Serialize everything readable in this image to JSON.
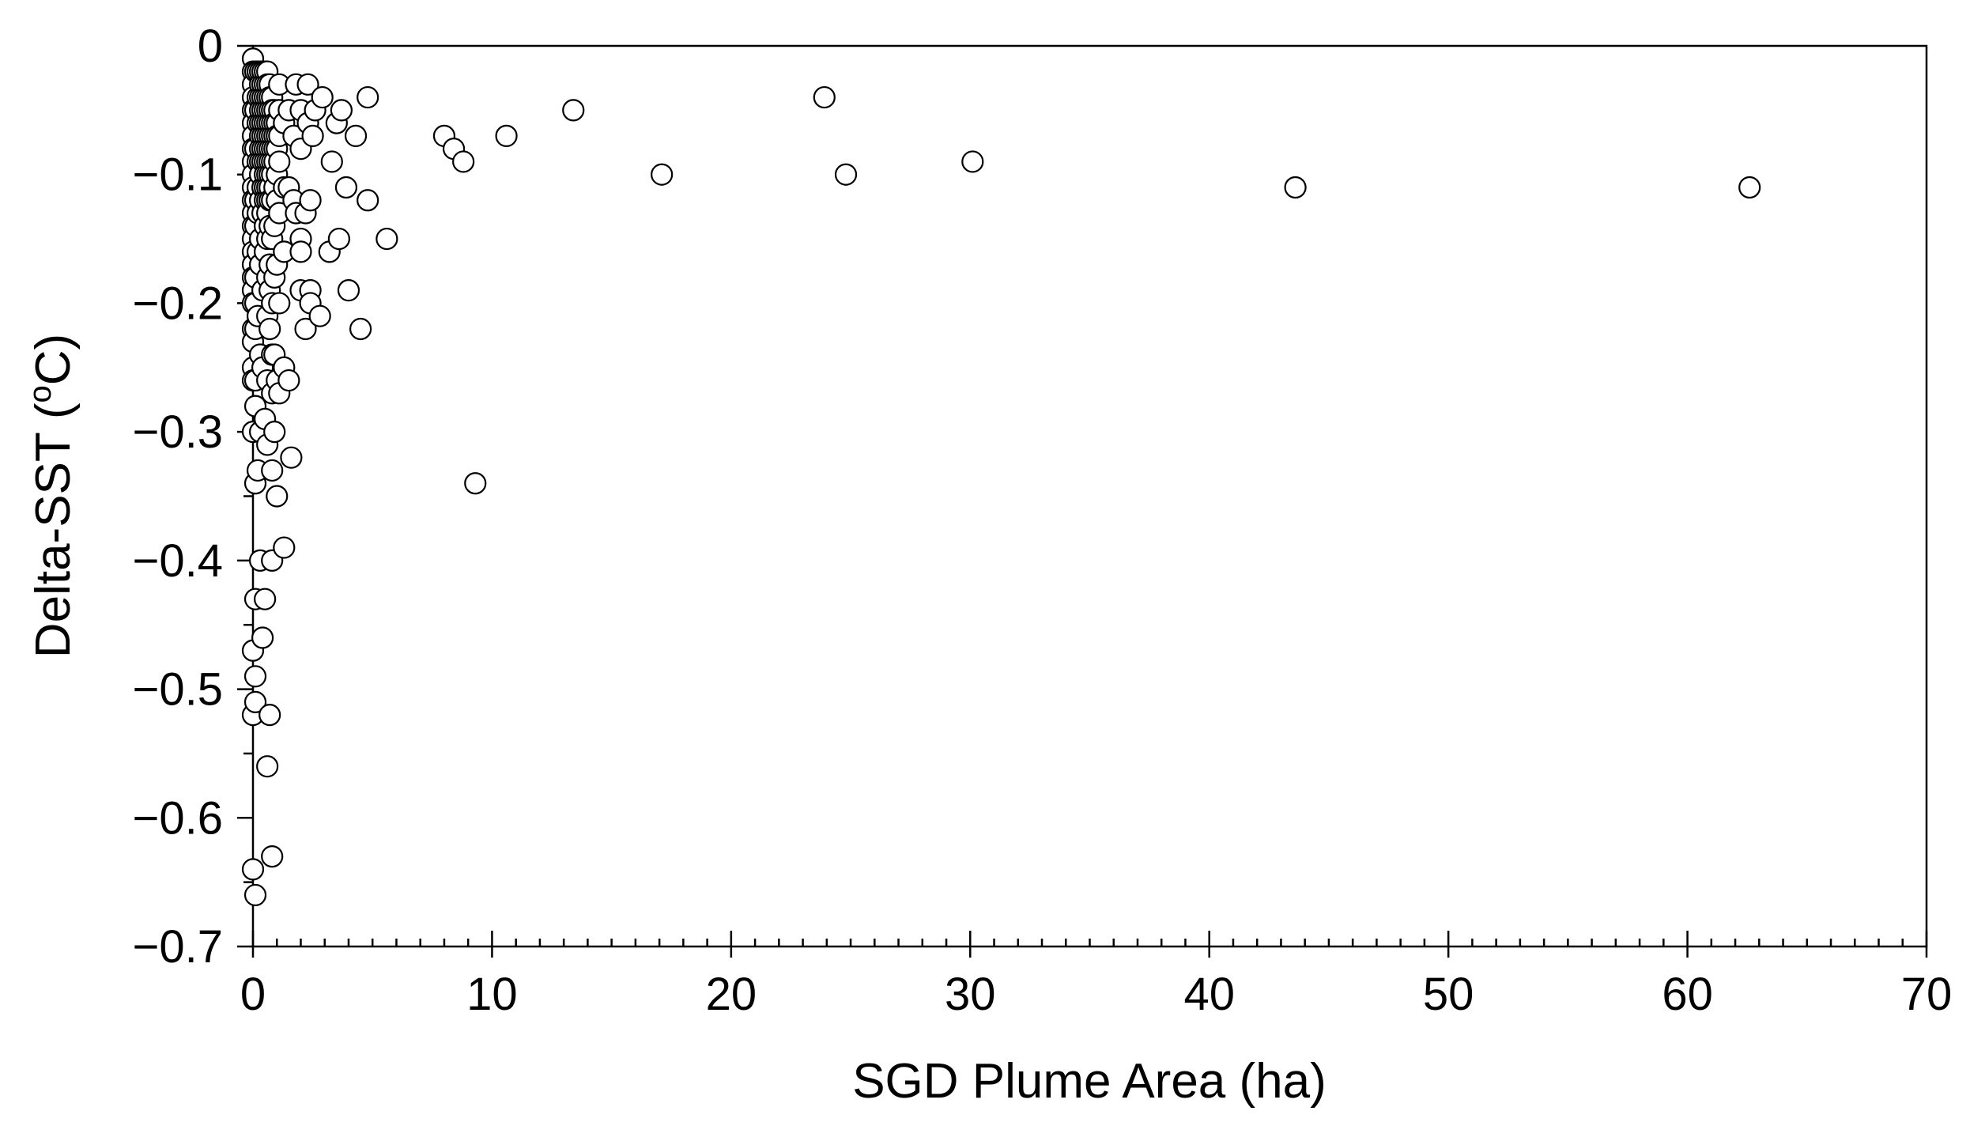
{
  "chart_data": {
    "type": "scatter",
    "title": "",
    "xlabel": "SGD Plume Area (ha)",
    "ylabel_text": "Delta-SST (",
    "ylabel_sup": "o",
    "ylabel_unit": "C)",
    "xlim": [
      0,
      70
    ],
    "ylim": [
      -0.7,
      0
    ],
    "grid": false,
    "marker": "open-circle",
    "x_ticks": [
      0,
      10,
      20,
      30,
      40,
      50,
      60,
      70
    ],
    "x_tick_labels": [
      "0",
      "10",
      "20",
      "30",
      "40",
      "50",
      "60",
      "70"
    ],
    "y_ticks": [
      0,
      -0.1,
      -0.2,
      -0.3,
      -0.4,
      -0.5,
      -0.6,
      -0.7
    ],
    "y_tick_labels": [
      "0",
      "−0.1",
      "−0.2",
      "−0.3",
      "−0.4",
      "−0.5",
      "−0.6",
      "−0.7"
    ],
    "x_minor_step": 1,
    "y_minor_step": 0.05,
    "series": [
      {
        "points": [
          [
            0.0,
            -0.01
          ],
          [
            0.0,
            -0.02
          ],
          [
            0.0,
            -0.03
          ],
          [
            0.0,
            -0.04
          ],
          [
            0.0,
            -0.05
          ],
          [
            0.0,
            -0.06
          ],
          [
            0.0,
            -0.07
          ],
          [
            0.0,
            -0.08
          ],
          [
            0.0,
            -0.09
          ],
          [
            0.0,
            -0.1
          ],
          [
            0.0,
            -0.11
          ],
          [
            0.0,
            -0.12
          ],
          [
            0.0,
            -0.13
          ],
          [
            0.0,
            -0.14
          ],
          [
            0.0,
            -0.15
          ],
          [
            0.0,
            -0.16
          ],
          [
            0.0,
            -0.17
          ],
          [
            0.0,
            -0.18
          ],
          [
            0.0,
            -0.19
          ],
          [
            0.0,
            -0.2
          ],
          [
            0.0,
            -0.22
          ],
          [
            0.0,
            -0.23
          ],
          [
            0.0,
            -0.25
          ],
          [
            0.0,
            -0.26
          ],
          [
            0.0,
            -0.3
          ],
          [
            0.0,
            -0.47
          ],
          [
            0.0,
            -0.52
          ],
          [
            0.0,
            -0.64
          ],
          [
            0.1,
            -0.02
          ],
          [
            0.1,
            -0.05
          ],
          [
            0.1,
            -0.08
          ],
          [
            0.1,
            -0.12
          ],
          [
            0.1,
            -0.14
          ],
          [
            0.1,
            -0.18
          ],
          [
            0.1,
            -0.2
          ],
          [
            0.1,
            -0.22
          ],
          [
            0.1,
            -0.26
          ],
          [
            0.1,
            -0.28
          ],
          [
            0.1,
            -0.34
          ],
          [
            0.1,
            -0.43
          ],
          [
            0.1,
            -0.49
          ],
          [
            0.1,
            -0.51
          ],
          [
            0.1,
            -0.66
          ],
          [
            0.2,
            -0.02
          ],
          [
            0.2,
            -0.04
          ],
          [
            0.2,
            -0.06
          ],
          [
            0.2,
            -0.09
          ],
          [
            0.2,
            -0.11
          ],
          [
            0.2,
            -0.13
          ],
          [
            0.2,
            -0.16
          ],
          [
            0.2,
            -0.21
          ],
          [
            0.2,
            -0.33
          ],
          [
            0.3,
            -0.02
          ],
          [
            0.3,
            -0.03
          ],
          [
            0.3,
            -0.04
          ],
          [
            0.3,
            -0.05
          ],
          [
            0.3,
            -0.06
          ],
          [
            0.3,
            -0.07
          ],
          [
            0.3,
            -0.08
          ],
          [
            0.3,
            -0.09
          ],
          [
            0.3,
            -0.1
          ],
          [
            0.3,
            -0.12
          ],
          [
            0.3,
            -0.15
          ],
          [
            0.3,
            -0.17
          ],
          [
            0.3,
            -0.24
          ],
          [
            0.3,
            -0.3
          ],
          [
            0.3,
            -0.4
          ],
          [
            0.4,
            -0.02
          ],
          [
            0.4,
            -0.03
          ],
          [
            0.4,
            -0.04
          ],
          [
            0.4,
            -0.05
          ],
          [
            0.4,
            -0.06
          ],
          [
            0.4,
            -0.07
          ],
          [
            0.4,
            -0.08
          ],
          [
            0.4,
            -0.09
          ],
          [
            0.4,
            -0.11
          ],
          [
            0.4,
            -0.13
          ],
          [
            0.4,
            -0.19
          ],
          [
            0.4,
            -0.25
          ],
          [
            0.4,
            -0.46
          ],
          [
            0.5,
            -0.02
          ],
          [
            0.5,
            -0.03
          ],
          [
            0.5,
            -0.04
          ],
          [
            0.5,
            -0.05
          ],
          [
            0.5,
            -0.06
          ],
          [
            0.5,
            -0.07
          ],
          [
            0.5,
            -0.08
          ],
          [
            0.5,
            -0.09
          ],
          [
            0.5,
            -0.1
          ],
          [
            0.5,
            -0.11
          ],
          [
            0.5,
            -0.12
          ],
          [
            0.5,
            -0.14
          ],
          [
            0.5,
            -0.16
          ],
          [
            0.5,
            -0.29
          ],
          [
            0.5,
            -0.43
          ],
          [
            0.6,
            -0.02
          ],
          [
            0.6,
            -0.03
          ],
          [
            0.6,
            -0.04
          ],
          [
            0.6,
            -0.05
          ],
          [
            0.6,
            -0.06
          ],
          [
            0.6,
            -0.07
          ],
          [
            0.6,
            -0.08
          ],
          [
            0.6,
            -0.09
          ],
          [
            0.6,
            -0.1
          ],
          [
            0.6,
            -0.11
          ],
          [
            0.6,
            -0.12
          ],
          [
            0.6,
            -0.13
          ],
          [
            0.6,
            -0.15
          ],
          [
            0.6,
            -0.18
          ],
          [
            0.6,
            -0.21
          ],
          [
            0.6,
            -0.26
          ],
          [
            0.6,
            -0.31
          ],
          [
            0.6,
            -0.56
          ],
          [
            0.7,
            -0.03
          ],
          [
            0.7,
            -0.04
          ],
          [
            0.7,
            -0.05
          ],
          [
            0.7,
            -0.06
          ],
          [
            0.7,
            -0.07
          ],
          [
            0.7,
            -0.08
          ],
          [
            0.7,
            -0.09
          ],
          [
            0.7,
            -0.1
          ],
          [
            0.7,
            -0.11
          ],
          [
            0.7,
            -0.12
          ],
          [
            0.7,
            -0.14
          ],
          [
            0.7,
            -0.17
          ],
          [
            0.7,
            -0.19
          ],
          [
            0.7,
            -0.22
          ],
          [
            0.7,
            -0.52
          ],
          [
            0.8,
            -0.04
          ],
          [
            0.8,
            -0.05
          ],
          [
            0.8,
            -0.06
          ],
          [
            0.8,
            -0.07
          ],
          [
            0.8,
            -0.08
          ],
          [
            0.8,
            -0.09
          ],
          [
            0.8,
            -0.1
          ],
          [
            0.8,
            -0.12
          ],
          [
            0.8,
            -0.15
          ],
          [
            0.8,
            -0.2
          ],
          [
            0.8,
            -0.24
          ],
          [
            0.8,
            -0.27
          ],
          [
            0.8,
            -0.33
          ],
          [
            0.8,
            -0.4
          ],
          [
            0.8,
            -0.63
          ],
          [
            0.9,
            -0.05
          ],
          [
            0.9,
            -0.06
          ],
          [
            0.9,
            -0.07
          ],
          [
            0.9,
            -0.08
          ],
          [
            0.9,
            -0.09
          ],
          [
            0.9,
            -0.11
          ],
          [
            0.9,
            -0.14
          ],
          [
            0.9,
            -0.18
          ],
          [
            0.9,
            -0.24
          ],
          [
            0.9,
            -0.3
          ],
          [
            1.0,
            -0.06
          ],
          [
            1.0,
            -0.07
          ],
          [
            1.0,
            -0.08
          ],
          [
            1.0,
            -0.1
          ],
          [
            1.0,
            -0.12
          ],
          [
            1.0,
            -0.17
          ],
          [
            1.0,
            -0.26
          ],
          [
            1.0,
            -0.35
          ],
          [
            1.1,
            -0.03
          ],
          [
            1.1,
            -0.05
          ],
          [
            1.1,
            -0.07
          ],
          [
            1.1,
            -0.09
          ],
          [
            1.1,
            -0.13
          ],
          [
            1.1,
            -0.2
          ],
          [
            1.1,
            -0.27
          ],
          [
            1.3,
            -0.06
          ],
          [
            1.3,
            -0.11
          ],
          [
            1.3,
            -0.16
          ],
          [
            1.3,
            -0.25
          ],
          [
            1.3,
            -0.39
          ],
          [
            1.5,
            -0.05
          ],
          [
            1.5,
            -0.11
          ],
          [
            1.5,
            -0.26
          ],
          [
            1.6,
            -0.32
          ],
          [
            1.7,
            -0.07
          ],
          [
            1.7,
            -0.12
          ],
          [
            1.8,
            -0.03
          ],
          [
            1.8,
            -0.13
          ],
          [
            2.0,
            -0.05
          ],
          [
            2.0,
            -0.08
          ],
          [
            2.0,
            -0.15
          ],
          [
            2.0,
            -0.16
          ],
          [
            2.0,
            -0.19
          ],
          [
            2.2,
            -0.13
          ],
          [
            2.2,
            -0.22
          ],
          [
            2.3,
            -0.03
          ],
          [
            2.3,
            -0.06
          ],
          [
            2.4,
            -0.12
          ],
          [
            2.4,
            -0.19
          ],
          [
            2.4,
            -0.2
          ],
          [
            2.5,
            -0.07
          ],
          [
            2.6,
            -0.05
          ],
          [
            2.8,
            -0.21
          ],
          [
            2.9,
            -0.04
          ],
          [
            3.2,
            -0.16
          ],
          [
            3.3,
            -0.09
          ],
          [
            3.5,
            -0.06
          ],
          [
            3.6,
            -0.15
          ],
          [
            3.7,
            -0.05
          ],
          [
            3.9,
            -0.11
          ],
          [
            4.0,
            -0.19
          ],
          [
            4.3,
            -0.07
          ],
          [
            4.5,
            -0.22
          ],
          [
            4.8,
            -0.04
          ],
          [
            4.8,
            -0.12
          ],
          [
            5.6,
            -0.15
          ],
          [
            8.0,
            -0.07
          ],
          [
            8.4,
            -0.08
          ],
          [
            8.8,
            -0.09
          ],
          [
            9.3,
            -0.34
          ],
          [
            10.6,
            -0.07
          ],
          [
            13.4,
            -0.05
          ],
          [
            17.1,
            -0.1
          ],
          [
            23.9,
            -0.04
          ],
          [
            24.8,
            -0.1
          ],
          [
            30.1,
            -0.09
          ],
          [
            43.6,
            -0.11
          ],
          [
            62.6,
            -0.11
          ]
        ]
      }
    ]
  }
}
